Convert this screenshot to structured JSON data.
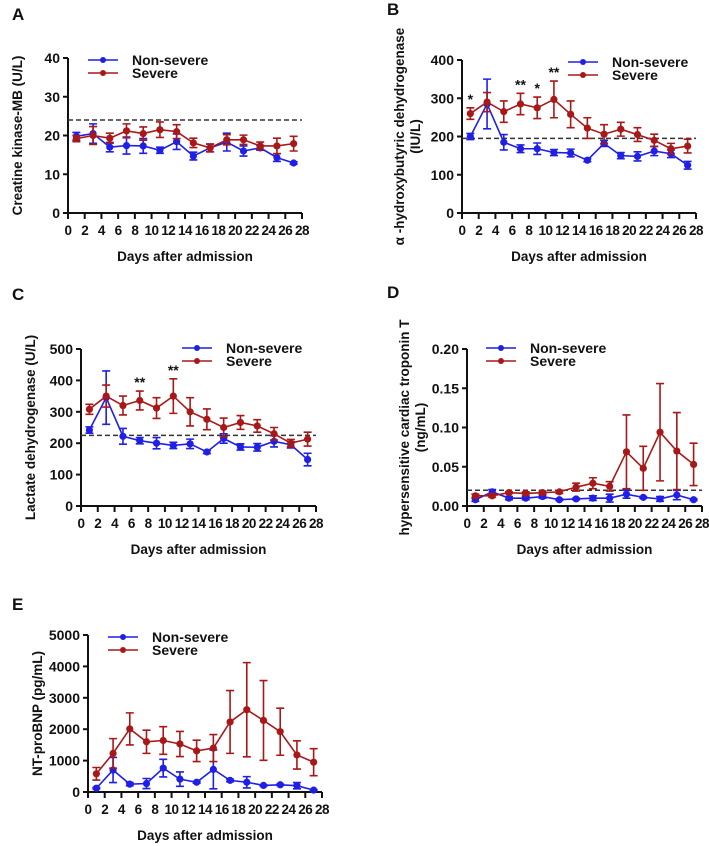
{
  "colors": {
    "non_severe": "#1f1fe6",
    "severe": "#a81818",
    "reference_line": "#333333"
  },
  "chart_data": [
    {
      "panel": "A",
      "type": "line",
      "xlabel": "Days after admission",
      "ylabel": [
        "Creatine kinase-MB (U/L)"
      ],
      "xlim": [
        0,
        28
      ],
      "ylim": [
        0,
        40
      ],
      "xticks": [
        0,
        2,
        4,
        6,
        8,
        10,
        12,
        14,
        16,
        18,
        20,
        22,
        24,
        26,
        28
      ],
      "yticks": [
        0,
        10,
        20,
        30,
        40
      ],
      "reference_line": 24,
      "legend": "top-left",
      "x": [
        1,
        3,
        5,
        7,
        9,
        11,
        13,
        15,
        17,
        19,
        21,
        23,
        25,
        27
      ],
      "series": [
        {
          "name": "Non-severe",
          "values": [
            19.8,
            20.5,
            17,
            17.4,
            17.3,
            16.2,
            18.4,
            14.7,
            16.8,
            18.3,
            16,
            16.8,
            14.3,
            12.9
          ],
          "errors": [
            1,
            2.5,
            1.2,
            2.2,
            1.9,
            0.8,
            2,
            1,
            1,
            2.3,
            1.3,
            0.6,
            1,
            0.3
          ]
        },
        {
          "name": "Severe",
          "values": [
            19.2,
            20,
            19.3,
            21.2,
            20.5,
            21.5,
            21,
            18.1,
            16.8,
            18.9,
            18.9,
            17.3,
            17.3,
            17.9
          ],
          "errors": [
            0.8,
            2.3,
            1.3,
            1.8,
            1.7,
            2,
            1.8,
            1.2,
            1,
            1.3,
            1.2,
            1,
            2,
            1.9
          ]
        }
      ],
      "annotations": []
    },
    {
      "panel": "B",
      "type": "line",
      "xlabel": "Days after admission",
      "ylabel": [
        "α -hydroxybutyric dehydrogenase",
        "(IU/L)"
      ],
      "xlim": [
        0,
        28
      ],
      "ylim": [
        0,
        400
      ],
      "xticks": [
        0,
        2,
        4,
        6,
        8,
        10,
        12,
        14,
        16,
        18,
        20,
        22,
        24,
        26,
        28
      ],
      "yticks": [
        0,
        100,
        200,
        300,
        400
      ],
      "reference_line": 195,
      "legend": "top-right",
      "x": [
        1,
        3,
        5,
        7,
        9,
        11,
        13,
        15,
        17,
        19,
        21,
        23,
        25,
        27
      ],
      "series": [
        {
          "name": "Non-severe",
          "values": [
            200,
            285,
            185,
            168,
            168,
            158,
            157,
            138,
            182,
            150,
            148,
            162,
            155,
            125
          ],
          "errors": [
            8,
            65,
            20,
            10,
            15,
            8,
            10,
            4,
            8,
            8,
            12,
            12,
            10,
            10
          ]
        },
        {
          "name": "Severe",
          "values": [
            260,
            290,
            265,
            285,
            275,
            297,
            258,
            222,
            206,
            219,
            205,
            190,
            168,
            175
          ],
          "errors": [
            15,
            25,
            28,
            28,
            28,
            48,
            35,
            27,
            25,
            18,
            18,
            16,
            14,
            18
          ]
        }
      ],
      "annotations": [
        {
          "x": 1,
          "text": "*"
        },
        {
          "x": 7,
          "text": "**"
        },
        {
          "x": 9,
          "text": "*"
        },
        {
          "x": 11,
          "text": "**"
        }
      ]
    },
    {
      "panel": "C",
      "type": "line",
      "xlabel": "Days after admission",
      "ylabel": [
        "Lactate dehydrogenase (U/L)"
      ],
      "xlim": [
        0,
        28
      ],
      "ylim": [
        0,
        500
      ],
      "xticks": [
        0,
        2,
        4,
        6,
        8,
        10,
        12,
        14,
        16,
        18,
        20,
        22,
        24,
        26,
        28
      ],
      "yticks": [
        0,
        100,
        200,
        300,
        400,
        500
      ],
      "reference_line": 225,
      "legend": "top-right",
      "x": [
        1,
        3,
        5,
        7,
        9,
        11,
        13,
        15,
        17,
        19,
        21,
        23,
        25,
        27
      ],
      "series": [
        {
          "name": "Non-severe",
          "values": [
            242,
            345,
            222,
            208,
            200,
            193,
            198,
            172,
            215,
            188,
            187,
            206,
            195,
            148
          ],
          "errors": [
            10,
            85,
            25,
            10,
            18,
            10,
            15,
            5,
            15,
            10,
            12,
            18,
            10,
            20
          ]
        },
        {
          "name": "Severe",
          "values": [
            308,
            350,
            320,
            336,
            312,
            350,
            300,
            276,
            250,
            266,
            255,
            230,
            200,
            213
          ],
          "errors": [
            16,
            35,
            30,
            30,
            33,
            55,
            45,
            33,
            30,
            22,
            20,
            20,
            12,
            22
          ]
        }
      ],
      "annotations": [
        {
          "x": 7,
          "text": "**"
        },
        {
          "x": 11,
          "text": "**"
        }
      ]
    },
    {
      "panel": "D",
      "type": "line",
      "xlabel": "Days after admission",
      "ylabel": [
        "hypersensitive cardiac troponin T",
        "(ng/mL)"
      ],
      "xlim": [
        0,
        28
      ],
      "ylim": [
        0,
        0.2
      ],
      "xticks": [
        0,
        2,
        4,
        6,
        8,
        10,
        12,
        14,
        16,
        18,
        20,
        22,
        24,
        26,
        28
      ],
      "yticks": [
        "0.00",
        "0.05",
        "0.10",
        "0.15",
        "0.20"
      ],
      "reference_line": 0.02,
      "legend": "top-left",
      "x": [
        1,
        3,
        5,
        7,
        9,
        11,
        13,
        15,
        17,
        19,
        21,
        23,
        25,
        27
      ],
      "series": [
        {
          "name": "Non-severe",
          "values": [
            0.008,
            0.018,
            0.01,
            0.01,
            0.012,
            0.008,
            0.009,
            0.01,
            0.01,
            0.015,
            0.011,
            0.009,
            0.014,
            0.008
          ],
          "errors": [
            0.002,
            0.003,
            0.002,
            0.002,
            0.002,
            0.001,
            0.001,
            0.003,
            0.005,
            0.005,
            0.001,
            0.003,
            0.006,
            0.001
          ]
        },
        {
          "name": "Severe",
          "values": [
            0.013,
            0.013,
            0.017,
            0.016,
            0.017,
            0.018,
            0.024,
            0.029,
            0.025,
            0.069,
            0.048,
            0.094,
            0.07,
            0.053
          ],
          "errors": [
            0.002,
            0.002,
            0.001,
            0.002,
            0.002,
            0.002,
            0.005,
            0.007,
            0.006,
            0.047,
            0.028,
            0.062,
            0.049,
            0.027
          ]
        }
      ],
      "annotations": []
    },
    {
      "panel": "E",
      "type": "line",
      "xlabel": "Days after admission",
      "ylabel": [
        "NT-proBNP (pg/mL)"
      ],
      "xlim": [
        0,
        28
      ],
      "ylim": [
        0,
        5000
      ],
      "xticks": [
        0,
        2,
        4,
        6,
        8,
        10,
        12,
        14,
        16,
        18,
        20,
        22,
        24,
        26,
        28
      ],
      "yticks": [
        0,
        1000,
        2000,
        3000,
        4000,
        5000
      ],
      "reference_line": null,
      "legend": "top-left",
      "x": [
        1,
        3,
        5,
        7,
        9,
        11,
        13,
        15,
        17,
        19,
        21,
        23,
        25,
        27
      ],
      "series": [
        {
          "name": "Non-severe",
          "values": [
            120,
            700,
            250,
            270,
            760,
            410,
            310,
            720,
            370,
            310,
            210,
            230,
            200,
            60
          ],
          "errors": [
            20,
            400,
            50,
            160,
            280,
            230,
            30,
            620,
            40,
            180,
            20,
            20,
            100,
            20
          ]
        },
        {
          "name": "Severe",
          "values": [
            580,
            1230,
            2010,
            1600,
            1640,
            1530,
            1310,
            1400,
            2230,
            2620,
            2280,
            1920,
            1180,
            950
          ],
          "errors": [
            200,
            470,
            510,
            370,
            440,
            400,
            340,
            430,
            1000,
            1500,
            1270,
            750,
            450,
            430
          ]
        }
      ],
      "annotations": []
    }
  ]
}
